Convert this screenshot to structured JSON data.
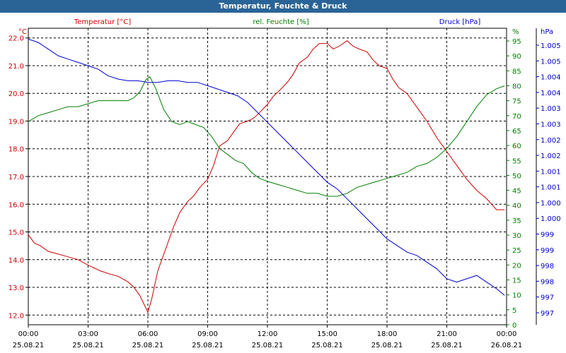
{
  "title": "Temperatur, Feuchte & Druck",
  "chart_data": {
    "type": "line",
    "title": "Temperatur, Feuchte & Druck",
    "x_ticks": [
      {
        "time": "00:00",
        "date": "25.08.21"
      },
      {
        "time": "03:00",
        "date": "25.08.21"
      },
      {
        "time": "06:00",
        "date": "25.08.21"
      },
      {
        "time": "09:00",
        "date": "25.08.21"
      },
      {
        "time": "12:00",
        "date": "25.08.21"
      },
      {
        "time": "15:00",
        "date": "25.08.21"
      },
      {
        "time": "18:00",
        "date": "25.08.21"
      },
      {
        "time": "21:00",
        "date": "25.08.21"
      },
      {
        "time": "00:00",
        "date": "26.08.21"
      }
    ],
    "x_range_hours": [
      0,
      24
    ],
    "grid": true,
    "axes": {
      "temperature": {
        "label": "Temperatur [°C]",
        "unit": "°C",
        "color": "#cc0000",
        "ylim": [
          11.65,
          22.35
        ],
        "ticks": [
          "22.0",
          "21.0",
          "20.0",
          "19.0",
          "18.0",
          "17.0",
          "16.0",
          "15.0",
          "14.0",
          "13.0",
          "12.0"
        ]
      },
      "humidity": {
        "label": "rel. Feuchte [%]",
        "unit": "%",
        "color": "#008000",
        "ylim": [
          0,
          95
        ],
        "ticks": [
          "%",
          "95",
          "90",
          "85",
          "80",
          "75",
          "70",
          "65",
          "60",
          "55",
          "50",
          "45",
          "40",
          "35",
          "30",
          "25",
          "20",
          "15",
          "10",
          "5",
          "0"
        ]
      },
      "pressure": {
        "label": "Druck [hPa]",
        "unit": "hPa",
        "color": "#0000cc",
        "ylim": [
          996.8,
          1005.2
        ],
        "ticks": [
          "hPa",
          "1.005",
          "1.005",
          "1.004",
          "1.004",
          "1.003",
          "1.003",
          "1.002",
          "1.002",
          "1.001",
          "1.001",
          "1.000",
          "1.000",
          "999",
          "999",
          "998",
          "998",
          "997",
          "997"
        ]
      }
    },
    "series": [
      {
        "name": "Temperatur [°C]",
        "axis": "temperature",
        "color": "#cc0000",
        "x": [
          0,
          0.3,
          0.6,
          1,
          1.5,
          2,
          2.5,
          3,
          3.3,
          3.6,
          4,
          4.5,
          5,
          5.3,
          5.6,
          5.8,
          6,
          6.2,
          6.5,
          7,
          7.3,
          7.6,
          8,
          8.3,
          8.6,
          9,
          9.3,
          9.6,
          10,
          10.3,
          10.6,
          11,
          11.3,
          11.6,
          12,
          12.3,
          12.6,
          13,
          13.3,
          13.6,
          14,
          14.3,
          14.6,
          15,
          15.3,
          15.6,
          16,
          16.3,
          16.6,
          17,
          17.3,
          17.6,
          18,
          18.3,
          18.6,
          19,
          19.5,
          20,
          20.5,
          21,
          21.5,
          22,
          22.5,
          23,
          23.5,
          23.9
        ],
        "values": [
          14.9,
          14.6,
          14.5,
          14.3,
          14.2,
          14.1,
          14.0,
          13.8,
          13.7,
          13.6,
          13.5,
          13.4,
          13.2,
          13.0,
          12.7,
          12.4,
          12.1,
          12.6,
          13.6,
          14.6,
          15.2,
          15.7,
          16.1,
          16.3,
          16.6,
          16.9,
          17.4,
          18.1,
          18.3,
          18.6,
          18.9,
          19.0,
          19.1,
          19.3,
          19.6,
          19.9,
          20.1,
          20.4,
          20.7,
          21.1,
          21.3,
          21.6,
          21.8,
          21.8,
          21.6,
          21.7,
          21.9,
          21.7,
          21.6,
          21.5,
          21.2,
          21.0,
          20.9,
          20.5,
          20.2,
          20.0,
          19.5,
          19.0,
          18.4,
          17.9,
          17.4,
          16.9,
          16.5,
          16.2,
          15.8,
          15.8
        ]
      },
      {
        "name": "rel. Feuchte [%]",
        "axis": "humidity",
        "color": "#008000",
        "x": [
          0,
          0.5,
          1,
          1.5,
          2,
          2.5,
          3,
          3.5,
          4,
          4.5,
          5,
          5.3,
          5.6,
          5.9,
          6.1,
          6.4,
          6.8,
          7.2,
          7.6,
          8,
          8.4,
          8.8,
          9.2,
          9.6,
          10,
          10.4,
          10.8,
          11.2,
          11.6,
          12,
          12.5,
          13,
          13.5,
          14,
          14.5,
          15,
          15.5,
          16,
          16.5,
          17,
          17.5,
          18,
          18.5,
          19,
          19.5,
          20,
          20.5,
          21,
          21.5,
          22,
          22.5,
          23,
          23.5,
          23.9
        ],
        "values": [
          68,
          70,
          71,
          72,
          73,
          73,
          74,
          75,
          75,
          75,
          75,
          76,
          78,
          82,
          83,
          79,
          72,
          68,
          67,
          68,
          67,
          66,
          63,
          59,
          57,
          55,
          54,
          51,
          49,
          48,
          47,
          46,
          45,
          44,
          44,
          43,
          43,
          44,
          46,
          47,
          48,
          49,
          50,
          51,
          53,
          54,
          56,
          59,
          63,
          68,
          73,
          77,
          79,
          80
        ]
      },
      {
        "name": "Druck [hPa]",
        "axis": "pressure",
        "color": "#0000cc",
        "x": [
          0,
          0.5,
          1,
          1.5,
          2,
          2.5,
          3,
          3.5,
          4,
          4.5,
          5,
          5.5,
          6,
          6.5,
          7,
          7.5,
          8,
          8.5,
          9,
          9.5,
          10,
          10.5,
          11,
          11.5,
          12,
          12.5,
          13,
          13.5,
          14,
          14.5,
          15,
          15.5,
          16,
          16.5,
          17,
          17.5,
          18,
          18.5,
          19,
          19.5,
          20,
          20.5,
          21,
          21.5,
          22,
          22.5,
          23,
          23.5,
          23.9
        ],
        "values": [
          1005.0,
          1004.9,
          1004.7,
          1004.5,
          1004.4,
          1004.3,
          1004.2,
          1004.1,
          1003.9,
          1003.8,
          1003.75,
          1003.75,
          1003.7,
          1003.7,
          1003.75,
          1003.75,
          1003.7,
          1003.7,
          1003.6,
          1003.5,
          1003.4,
          1003.3,
          1003.1,
          1002.8,
          1002.5,
          1002.2,
          1001.9,
          1001.6,
          1001.3,
          1001.0,
          1000.7,
          1000.5,
          1000.2,
          999.9,
          999.6,
          999.3,
          999.0,
          998.8,
          998.6,
          998.5,
          998.3,
          998.1,
          997.8,
          997.7,
          997.8,
          997.9,
          997.7,
          997.5,
          997.3
        ]
      }
    ]
  }
}
